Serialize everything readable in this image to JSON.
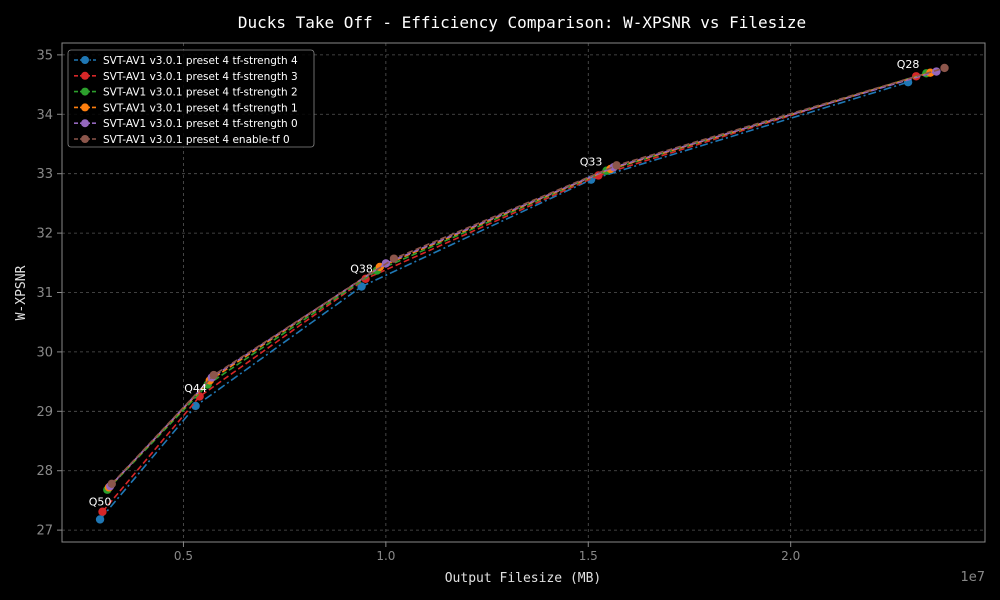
{
  "chart_data": {
    "type": "line",
    "title": "Ducks Take Off - Efficiency Comparison: W-XPSNR vs Filesize",
    "xlabel": "Output Filesize (MB)",
    "ylabel": "W-XPSNR",
    "x_offset_label": "1e7",
    "xlim": [
      0.2,
      2.48
    ],
    "ylim": [
      26.8,
      35.2
    ],
    "x_ticks": [
      0.5,
      1.0,
      1.5,
      2.0
    ],
    "x_tick_labels": [
      "0.5",
      "1.0",
      "1.5",
      "2.0"
    ],
    "y_ticks": [
      27,
      28,
      29,
      30,
      31,
      32,
      33,
      34,
      35
    ],
    "y_tick_labels": [
      "27",
      "28",
      "29",
      "30",
      "31",
      "32",
      "33",
      "34",
      "35"
    ],
    "grid": true,
    "legend_position": "top-left",
    "series": [
      {
        "name": "SVT-AV1 v3.0.1 preset 4 tf-strength 4",
        "color": "#1f77b4",
        "dash": "dashdot",
        "x": [
          0.294,
          0.53,
          0.94,
          1.507,
          2.29
        ],
        "y": [
          27.18,
          29.09,
          31.1,
          32.9,
          34.54
        ]
      },
      {
        "name": "SVT-AV1 v3.0.1 preset 4 tf-strength 3",
        "color": "#d62728",
        "dash": "dashed",
        "x": [
          0.3,
          0.54,
          0.95,
          1.525,
          2.31
        ],
        "y": [
          27.31,
          29.25,
          31.23,
          32.97,
          34.64
        ]
      },
      {
        "name": "SVT-AV1 v3.0.1 preset 4 tf-strength 2",
        "color": "#2ca02c",
        "dash": "dashed",
        "x": [
          0.312,
          0.56,
          0.978,
          1.545,
          2.335
        ],
        "y": [
          27.68,
          29.45,
          31.37,
          33.05,
          34.69
        ]
      },
      {
        "name": "SVT-AV1 v3.0.1 preset 4 tf-strength 1",
        "color": "#ff7f0e",
        "dash": "dashed",
        "x": [
          0.316,
          0.565,
          0.985,
          1.555,
          2.345
        ],
        "y": [
          27.72,
          29.52,
          31.43,
          33.08,
          34.7
        ]
      },
      {
        "name": "SVT-AV1 v3.0.1 preset 4 tf-strength 0",
        "color": "#9467bd",
        "dash": "dashed",
        "x": [
          0.319,
          0.57,
          1.0,
          1.563,
          2.36
        ],
        "y": [
          27.74,
          29.57,
          31.49,
          33.11,
          34.72
        ]
      },
      {
        "name": "SVT-AV1 v3.0.1 preset 4 enable-tf 0",
        "color": "#8c564b",
        "dash": "dashed",
        "x": [
          0.323,
          0.575,
          1.02,
          1.57,
          2.38
        ],
        "y": [
          27.78,
          29.61,
          31.57,
          33.14,
          34.78
        ]
      }
    ],
    "annotations": [
      {
        "text": "Q50",
        "x": 0.294,
        "y": 27.18
      },
      {
        "text": "Q44",
        "x": 0.53,
        "y": 29.09
      },
      {
        "text": "Q38",
        "x": 0.94,
        "y": 31.1
      },
      {
        "text": "Q33",
        "x": 1.507,
        "y": 32.9
      },
      {
        "text": "Q28",
        "x": 2.29,
        "y": 34.54
      }
    ]
  }
}
